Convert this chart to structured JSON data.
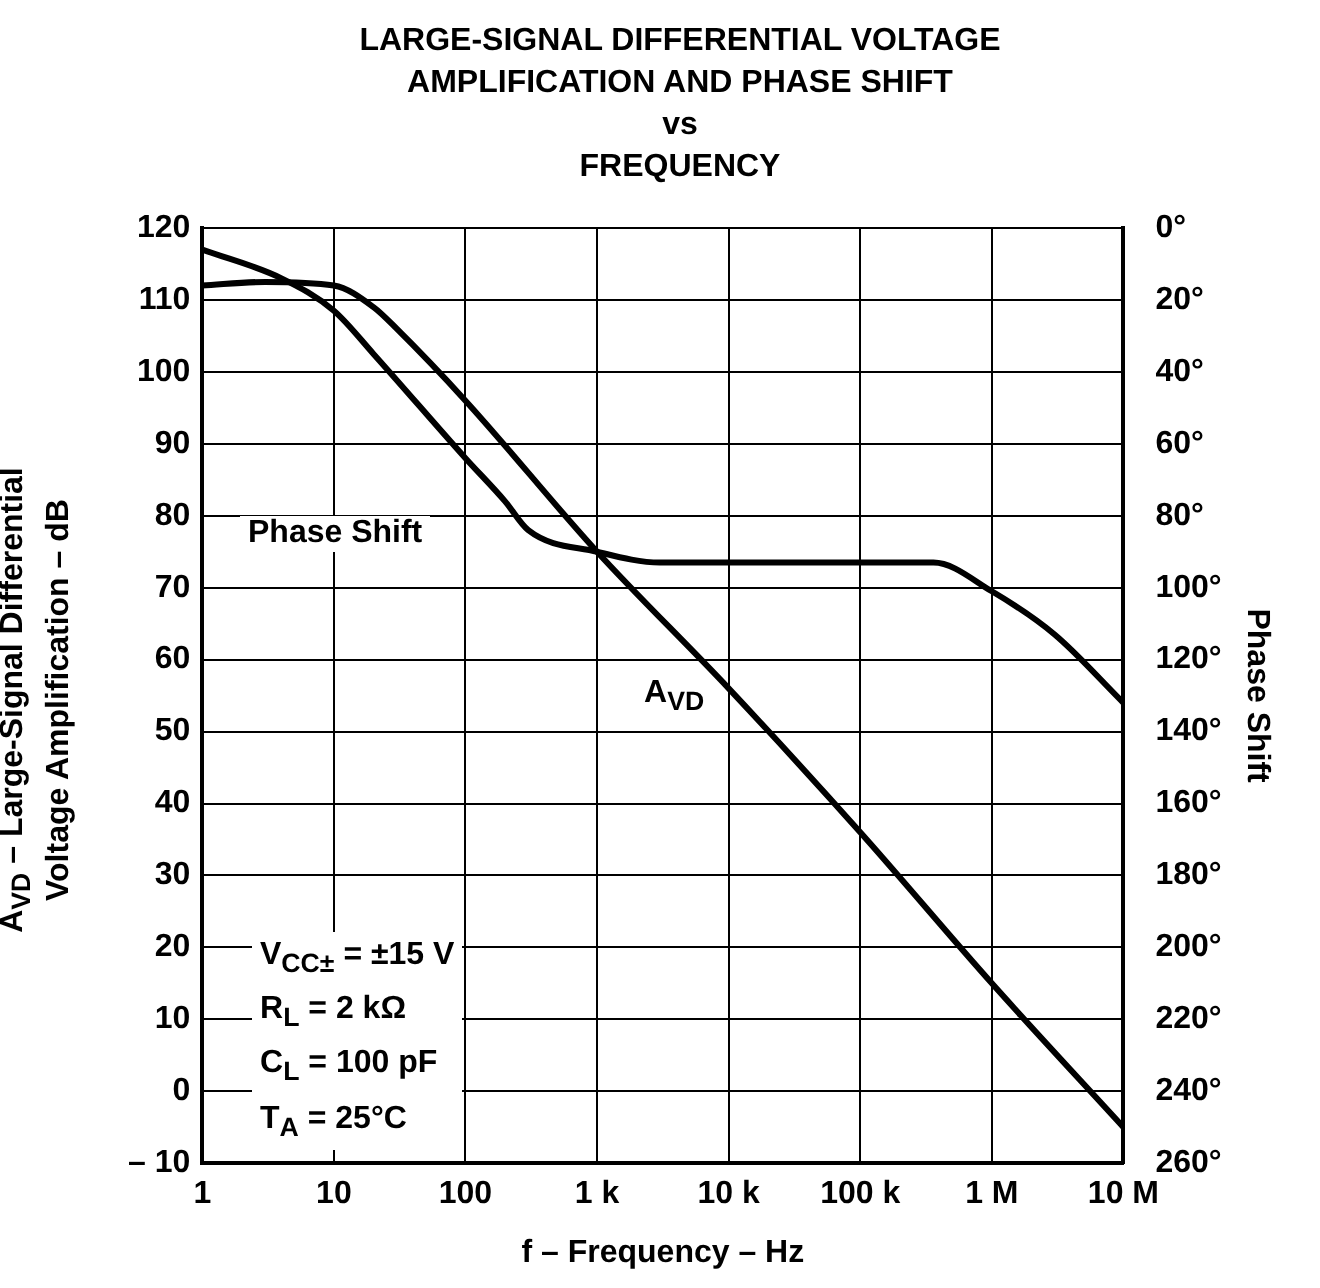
{
  "chart_data": {
    "type": "line",
    "title": "LARGE-SIGNAL DIFFERENTIAL VOLTAGE\nAMPLIFICATION AND PHASE SHIFT\nvs\nFREQUENCY",
    "xlabel": "f – Frequency – Hz",
    "ylabel": "A$_{VD}$ – Large-Signal Differential Voltage Amplification – dB",
    "y2label": "Phase Shift",
    "series": [
      {
        "name": "A$_{VD}$",
        "color": "#000000",
        "x": [
          1,
          3,
          10,
          20,
          30,
          100,
          1000,
          10000,
          100000,
          1000000,
          10000000
        ],
        "values": [
          112,
          112.5,
          112,
          109,
          106,
          96,
          75,
          56,
          36,
          15,
          -5
        ]
      },
      {
        "name": "Phase Shift",
        "color": "#000000",
        "axis": "y2",
        "x": [
          1,
          4,
          10,
          20,
          100,
          200,
          300,
          1000,
          3000,
          10000,
          100000,
          360000,
          1000000,
          3000000,
          10000000
        ],
        "values": [
          6,
          14,
          23,
          35,
          64,
          76,
          84,
          90,
          93,
          93,
          93,
          93,
          101,
          113,
          132
        ]
      }
    ],
    "log": "x",
    "xlim": [
      1,
      10000000
    ],
    "xticks": [
      1,
      10,
      100,
      {
        "value": 1000,
        "label": "1 k"
      },
      {
        "value": 10000,
        "label": "10 k"
      },
      {
        "value": 100000,
        "label": "100 k"
      },
      {
        "value": 1000000,
        "label": "1 M"
      },
      {
        "value": 10000000,
        "label": "10 M"
      }
    ],
    "ylim": [
      -10,
      120
    ],
    "yticks": [
      {
        "value": -10,
        "label": "– 10"
      },
      0,
      10,
      20,
      30,
      40,
      50,
      60,
      70,
      80,
      90,
      100,
      110,
      120
    ],
    "y2lim": [
      260,
      0
    ],
    "y2ticks": [
      {
        "value": 0,
        "label": "0°"
      },
      {
        "value": 20,
        "label": "20°"
      },
      {
        "value": 40,
        "label": "40°"
      },
      {
        "value": 60,
        "label": "60°"
      },
      {
        "value": 80,
        "label": "80°"
      },
      {
        "value": 100,
        "label": "100°"
      },
      {
        "value": 120,
        "label": "120°"
      },
      {
        "value": 140,
        "label": "140°"
      },
      {
        "value": 160,
        "label": "160°"
      },
      {
        "value": 180,
        "label": "180°"
      },
      {
        "value": 200,
        "label": "200°"
      },
      {
        "value": 220,
        "label": "220°"
      },
      {
        "value": 240,
        "label": "240°"
      },
      {
        "value": 260,
        "label": "260°"
      }
    ],
    "grid": true,
    "marker": "none",
    "line_style": "solid",
    "annotations": [
      "V$_{CC±}$ = ±15 V",
      "R$_{L}$ = 2 kΩ",
      "C$_{L}$ = 100 pF",
      "T$_{A}$ = 25°C"
    ]
  }
}
